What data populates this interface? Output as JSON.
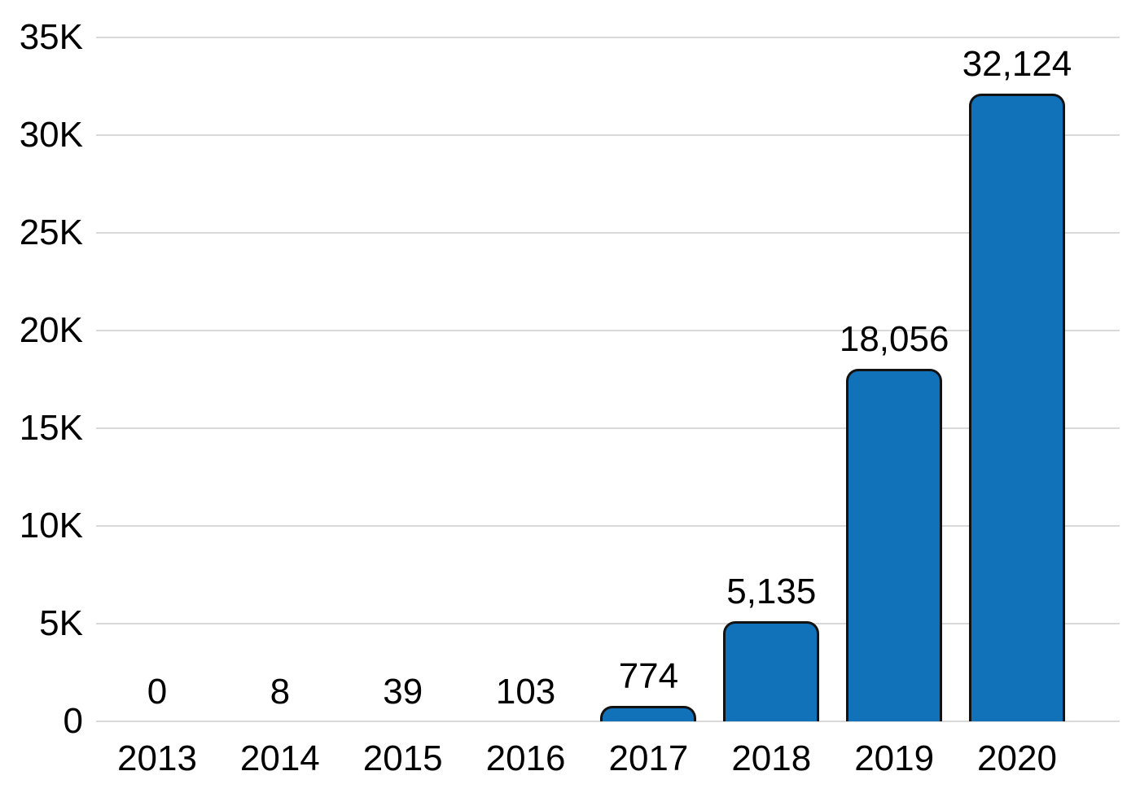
{
  "chart_data": {
    "type": "bar",
    "categories": [
      "2013",
      "2014",
      "2015",
      "2016",
      "2017",
      "2018",
      "2019",
      "2020"
    ],
    "values": [
      0,
      8,
      39,
      103,
      774,
      5135,
      18056,
      32124
    ],
    "value_labels": [
      "0",
      "8",
      "39",
      "103",
      "774",
      "5,135",
      "18,056",
      "32,124"
    ],
    "y_axis": {
      "tick_values": [
        0,
        5000,
        10000,
        15000,
        20000,
        25000,
        30000,
        35000
      ],
      "tick_labels": [
        "0",
        "5K",
        "10K",
        "15K",
        "20K",
        "25K",
        "30K",
        "35K"
      ]
    },
    "ylim": [
      0,
      35000
    ],
    "grid": true,
    "legend_position": "none",
    "colors": {
      "bar_fill": "#1171b9",
      "bar_border": "#121212",
      "gridline": "#d9d9d9",
      "text": "#000000",
      "background": "#ffffff"
    }
  }
}
